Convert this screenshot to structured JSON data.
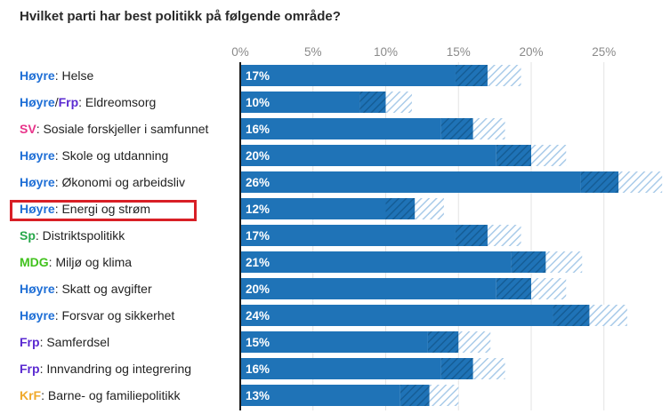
{
  "title": "Hvilket parti har best politikk på følgende område?",
  "chart_data": {
    "type": "bar",
    "orientation": "horizontal",
    "xlim": [
      0,
      29
    ],
    "x_ticks": [
      "0%",
      "5%",
      "10%",
      "15%",
      "20%",
      "25%"
    ],
    "x_tick_values": [
      0,
      5,
      10,
      15,
      20,
      25
    ],
    "grid": true,
    "highlighted_category": "Energi og strøm",
    "parties": {
      "Høyre": "#1f6fd6",
      "Frp": "#5b2bd1",
      "SV": "#e8338a",
      "Sp": "#27a84a",
      "MDG": "#42c21e",
      "KrF": "#f0a92b"
    },
    "colors": {
      "solid": "#1f73b7",
      "hatch_dark": "#1f73b7",
      "hatch_light": "#9fc3e5"
    },
    "rows": [
      {
        "parties": [
          "Høyre"
        ],
        "topic": "Helse",
        "value": 17,
        "label": "17%",
        "uncertainty_low": 14.8,
        "uncertainty_high": 19.3
      },
      {
        "parties": [
          "Høyre",
          "Frp"
        ],
        "topic": "Eldreomsorg",
        "value": 10,
        "label": "10%",
        "uncertainty_low": 8.2,
        "uncertainty_high": 11.8
      },
      {
        "parties": [
          "SV"
        ],
        "topic": "Sosiale forskjeller i samfunnet",
        "value": 16,
        "label": "16%",
        "uncertainty_low": 13.8,
        "uncertainty_high": 18.2
      },
      {
        "parties": [
          "Høyre"
        ],
        "topic": "Skole og utdanning",
        "value": 20,
        "label": "20%",
        "uncertainty_low": 17.6,
        "uncertainty_high": 22.4
      },
      {
        "parties": [
          "Høyre"
        ],
        "topic": "Økonomi og arbeidsliv",
        "value": 26,
        "label": "26%",
        "uncertainty_low": 23.4,
        "uncertainty_high": 29
      },
      {
        "parties": [
          "Høyre"
        ],
        "topic": "Energi og strøm",
        "value": 12,
        "label": "12%",
        "uncertainty_low": 10,
        "uncertainty_high": 14
      },
      {
        "parties": [
          "Sp"
        ],
        "topic": "Distriktspolitikk",
        "value": 17,
        "label": "17%",
        "uncertainty_low": 14.8,
        "uncertainty_high": 19.3
      },
      {
        "parties": [
          "MDG"
        ],
        "topic": "Miljø og klima",
        "value": 21,
        "label": "21%",
        "uncertainty_low": 18.6,
        "uncertainty_high": 23.5
      },
      {
        "parties": [
          "Høyre"
        ],
        "topic": "Skatt og avgifter",
        "value": 20,
        "label": "20%",
        "uncertainty_low": 17.6,
        "uncertainty_high": 22.4
      },
      {
        "parties": [
          "Høyre"
        ],
        "topic": "Forsvar og sikkerhet",
        "value": 24,
        "label": "24%",
        "uncertainty_low": 21.5,
        "uncertainty_high": 26.6
      },
      {
        "parties": [
          "Frp"
        ],
        "topic": "Samferdsel",
        "value": 15,
        "label": "15%",
        "uncertainty_low": 12.9,
        "uncertainty_high": 17.2
      },
      {
        "parties": [
          "Frp"
        ],
        "topic": "Innvandring og integrering",
        "value": 16,
        "label": "16%",
        "uncertainty_low": 13.8,
        "uncertainty_high": 18.2
      },
      {
        "parties": [
          "KrF"
        ],
        "topic": "Barne- og familiepolitikk",
        "value": 13,
        "label": "13%",
        "uncertainty_low": 11,
        "uncertainty_high": 15
      }
    ]
  }
}
